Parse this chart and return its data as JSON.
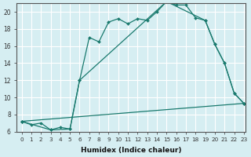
{
  "xlabel": "Humidex (Indice chaleur)",
  "background_color": "#d6eef2",
  "grid_color": "#ffffff",
  "line_color": "#1a7a6e",
  "xlim": [
    -0.5,
    23.2
  ],
  "ylim": [
    6,
    21
  ],
  "yticks": [
    6,
    8,
    10,
    12,
    14,
    16,
    18,
    20
  ],
  "xticks": [
    0,
    1,
    2,
    3,
    4,
    5,
    6,
    7,
    8,
    9,
    10,
    11,
    12,
    13,
    14,
    15,
    16,
    17,
    18,
    19,
    20,
    21,
    22,
    23
  ],
  "series1_x": [
    0,
    1,
    2,
    3,
    4,
    5,
    6,
    7,
    8,
    9,
    10,
    11,
    12,
    13,
    14,
    15,
    16,
    17,
    18,
    19,
    20,
    21,
    22,
    23
  ],
  "series1_y": [
    7.2,
    6.8,
    7.0,
    6.2,
    6.5,
    6.3,
    12.0,
    17.0,
    16.5,
    18.8,
    19.2,
    18.6,
    19.2,
    19.0,
    20.0,
    21.2,
    20.8,
    20.8,
    19.3,
    19.0,
    16.2,
    14.0,
    10.5,
    9.3
  ],
  "series2_x": [
    0,
    3,
    5,
    6,
    15,
    19,
    20,
    21,
    22,
    23
  ],
  "series2_y": [
    7.2,
    6.2,
    6.3,
    12.0,
    21.2,
    19.0,
    16.2,
    14.0,
    10.5,
    9.3
  ],
  "series3_x": [
    0,
    23
  ],
  "series3_y": [
    7.2,
    9.3
  ]
}
